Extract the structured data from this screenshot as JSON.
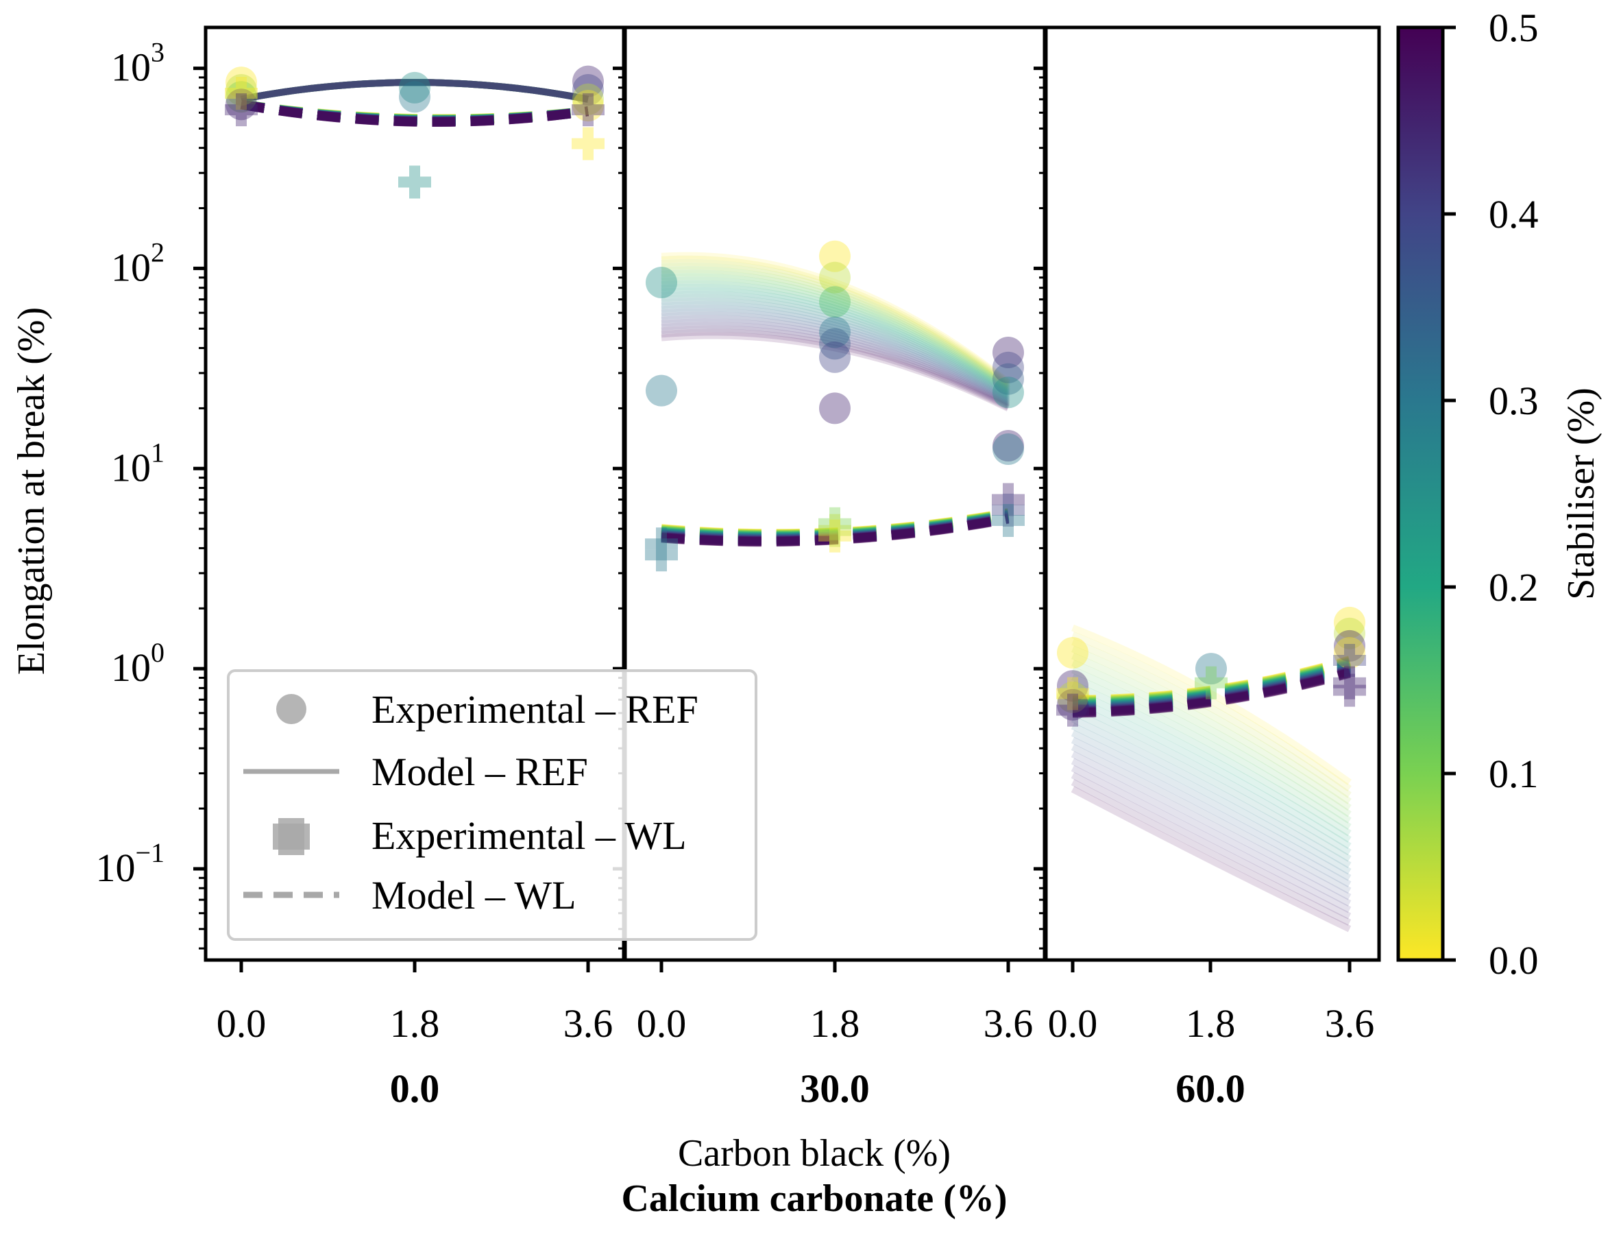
{
  "chart_data": {
    "type": "scatter",
    "yscale": "log",
    "ylabel": "Elongation at break (%)",
    "xlabel": "Carbon black (%)",
    "group_axis_label": "Calcium carbonate (%)",
    "ylim": [
      0.035,
      1600
    ],
    "y_ticks": [
      {
        "value": 1000,
        "base": "10",
        "exp": "3"
      },
      {
        "value": 100,
        "base": "10",
        "exp": "2"
      },
      {
        "value": 10,
        "base": "10",
        "exp": "1"
      },
      {
        "value": 1,
        "base": "10",
        "exp": "0"
      },
      {
        "value": 0.1,
        "base": "10",
        "exp": "−1"
      }
    ],
    "x_ticks": [
      "0.0",
      "1.8",
      "3.6"
    ],
    "x_values": [
      0.0,
      1.8,
      3.6
    ],
    "colorbar": {
      "label": "Stabiliser (%)",
      "range": [
        0.0,
        0.5
      ],
      "ticks": [
        "0.0",
        "0.1",
        "0.2",
        "0.3",
        "0.4",
        "0.5"
      ],
      "colors": [
        "#fde725",
        "#7ad151",
        "#22a884",
        "#2a788e",
        "#414487",
        "#440154"
      ]
    },
    "legend": [
      {
        "marker": "circle",
        "label": "Experimental – REF"
      },
      {
        "marker": "solid-line",
        "label": "Model – REF"
      },
      {
        "marker": "plus",
        "label": "Experimental – WL"
      },
      {
        "marker": "dashed-line",
        "label": "Model – WL"
      }
    ],
    "panels": [
      {
        "calcium_carbonate": "0.0",
        "model_ref": {
          "low": [
            700,
            850,
            700
          ],
          "high": [
            700,
            850,
            700
          ]
        },
        "model_wl": {
          "low": [
            660,
            540,
            610
          ],
          "high": [
            660,
            560,
            610
          ]
        },
        "exp_ref": [
          {
            "x": 0.0,
            "y": 850,
            "s": 0.0
          },
          {
            "x": 0.0,
            "y": 780,
            "s": 0.05
          },
          {
            "x": 0.0,
            "y": 720,
            "s": 0.1
          },
          {
            "x": 0.0,
            "y": 660,
            "s": 0.45
          },
          {
            "x": 1.8,
            "y": 800,
            "s": 0.25
          },
          {
            "x": 1.8,
            "y": 720,
            "s": 0.3
          },
          {
            "x": 3.6,
            "y": 860,
            "s": 0.45
          },
          {
            "x": 3.6,
            "y": 780,
            "s": 0.4
          },
          {
            "x": 3.6,
            "y": 700,
            "s": 0.05
          },
          {
            "x": 3.6,
            "y": 650,
            "s": 0.0
          }
        ],
        "exp_wl": [
          {
            "x": 0.0,
            "y": 750,
            "s": 0.0
          },
          {
            "x": 0.0,
            "y": 620,
            "s": 0.45
          },
          {
            "x": 1.8,
            "y": 270,
            "s": 0.25
          },
          {
            "x": 3.6,
            "y": 420,
            "s": 0.0
          },
          {
            "x": 3.6,
            "y": 620,
            "s": 0.45
          }
        ]
      },
      {
        "calcium_carbonate": "30.0",
        "model_ref": {
          "low": [
            45,
            40,
            20
          ],
          "high": [
            115,
            85,
            27
          ]
        },
        "model_wl": {
          "low": [
            4.5,
            4.4,
            5.6
          ],
          "high": [
            5.0,
            4.8,
            6.0
          ]
        },
        "exp_ref": [
          {
            "x": 0.0,
            "y": 85,
            "s": 0.25
          },
          {
            "x": 0.0,
            "y": 24.5,
            "s": 0.3
          },
          {
            "x": 1.8,
            "y": 115,
            "s": 0.0
          },
          {
            "x": 1.8,
            "y": 90,
            "s": 0.05
          },
          {
            "x": 1.8,
            "y": 68,
            "s": 0.15
          },
          {
            "x": 1.8,
            "y": 48,
            "s": 0.3
          },
          {
            "x": 1.8,
            "y": 42,
            "s": 0.35
          },
          {
            "x": 1.8,
            "y": 36,
            "s": 0.4
          },
          {
            "x": 1.8,
            "y": 20,
            "s": 0.45
          },
          {
            "x": 3.6,
            "y": 38,
            "s": 0.45
          },
          {
            "x": 3.6,
            "y": 32,
            "s": 0.4
          },
          {
            "x": 3.6,
            "y": 28,
            "s": 0.35
          },
          {
            "x": 3.6,
            "y": 24,
            "s": 0.25
          },
          {
            "x": 3.6,
            "y": 13,
            "s": 0.45
          },
          {
            "x": 3.6,
            "y": 12.5,
            "s": 0.3
          }
        ],
        "exp_wl": [
          {
            "x": 0.0,
            "y": 4.2,
            "s": 0.3
          },
          {
            "x": 0.0,
            "y": 3.7,
            "s": 0.3
          },
          {
            "x": 1.8,
            "y": 5.3,
            "s": 0.1
          },
          {
            "x": 1.8,
            "y": 4.6,
            "s": 0.0
          },
          {
            "x": 1.8,
            "y": 4.9,
            "s": 0.05
          },
          {
            "x": 3.6,
            "y": 7.0,
            "s": 0.45
          },
          {
            "x": 3.6,
            "y": 6.2,
            "s": 0.4
          },
          {
            "x": 3.6,
            "y": 5.5,
            "s": 0.3
          }
        ]
      },
      {
        "calcium_carbonate": "60.0",
        "model_ref": {
          "low": [
            0.25,
            0.11,
            0.05
          ],
          "high": [
            1.6,
            0.75,
            0.27
          ]
        },
        "model_wl": {
          "low": [
            0.6,
            0.68,
            0.95
          ],
          "high": [
            0.7,
            0.78,
            1.1
          ]
        },
        "exp_ref": [
          {
            "x": 0.0,
            "y": 1.2,
            "s": 0.0
          },
          {
            "x": 0.0,
            "y": 0.82,
            "s": 0.45
          },
          {
            "x": 0.0,
            "y": 0.72,
            "s": 0.05
          },
          {
            "x": 0.0,
            "y": 0.66,
            "s": 0.45
          },
          {
            "x": 1.8,
            "y": 1.0,
            "s": 0.3
          },
          {
            "x": 3.6,
            "y": 1.7,
            "s": 0.0
          },
          {
            "x": 3.6,
            "y": 1.5,
            "s": 0.05
          },
          {
            "x": 3.6,
            "y": 1.3,
            "s": 0.45
          },
          {
            "x": 3.6,
            "y": 1.2,
            "s": 0.0
          }
        ],
        "exp_wl": [
          {
            "x": 0.0,
            "y": 0.75,
            "s": 0.0
          },
          {
            "x": 0.0,
            "y": 0.62,
            "s": 0.45
          },
          {
            "x": 1.8,
            "y": 0.85,
            "s": 0.1
          },
          {
            "x": 3.6,
            "y": 1.1,
            "s": 0.4
          },
          {
            "x": 3.6,
            "y": 0.85,
            "s": 0.45
          },
          {
            "x": 3.6,
            "y": 0.78,
            "s": 0.45
          }
        ]
      }
    ]
  }
}
